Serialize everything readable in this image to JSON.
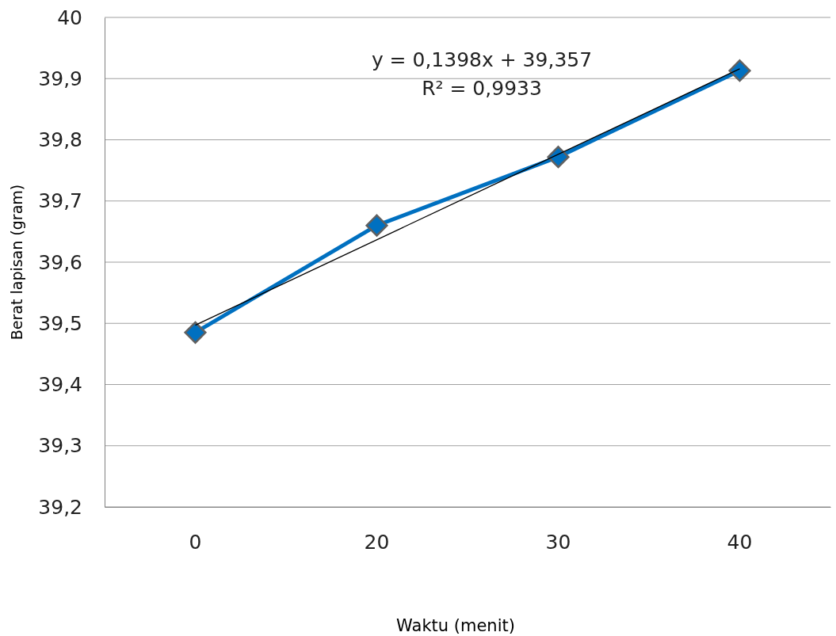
{
  "chart_data": {
    "type": "line",
    "xlabel": "Waktu (menit)",
    "ylabel": "Berat lapisan (gram)",
    "categories": [
      "0",
      "20",
      "30",
      "40"
    ],
    "series": [
      {
        "color": "#0070c0",
        "values": [
          39.485,
          39.66,
          39.772,
          39.913
        ],
        "marker": "diamond"
      },
      {
        "type": "line",
        "color": "#000000",
        "x": [
          "0",
          "40"
        ],
        "values": [
          39.497,
          39.916
        ],
        "marker": "none"
      }
    ],
    "ylim": [
      39.2,
      40
    ],
    "yticks": [
      {
        "value": 39.2,
        "label": "39,2"
      },
      {
        "value": 39.3,
        "label": "39,3"
      },
      {
        "value": 39.4,
        "label": "39,4"
      },
      {
        "value": 39.5,
        "label": "39,5"
      },
      {
        "value": 39.6,
        "label": "39,6"
      },
      {
        "value": 39.7,
        "label": "39,7"
      },
      {
        "value": 39.8,
        "label": "39,8"
      },
      {
        "value": 39.9,
        "label": "39,9"
      },
      40
    ],
    "grid": "y",
    "annotations": [
      "y = 0,1398x + 39,357",
      "R² = 0,9933"
    ]
  }
}
